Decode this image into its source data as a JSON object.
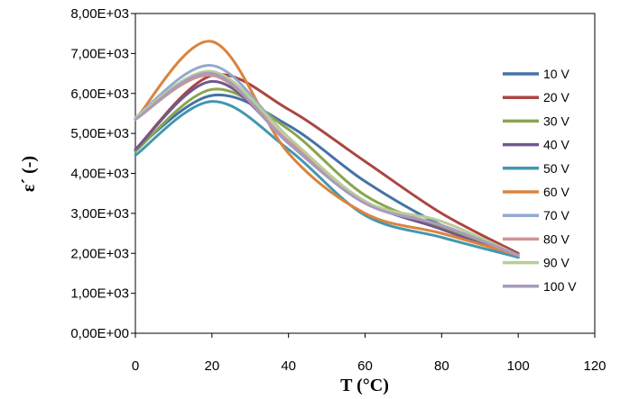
{
  "chart_data": {
    "type": "line",
    "title": "",
    "xlabel": "T (°C)",
    "ylabel": "ε´ (-)",
    "xlim": [
      0,
      120
    ],
    "ylim": [
      0,
      8000
    ],
    "x_ticks": [
      "0",
      "20",
      "40",
      "60",
      "80",
      "100",
      "120"
    ],
    "y_ticks": [
      "0,00E+00",
      "1,00E+03",
      "2,00E+03",
      "3,00E+03",
      "4,00E+03",
      "5,00E+03",
      "6,00E+03",
      "7,00E+03",
      "8,00E+03"
    ],
    "grid": false,
    "legend_position": "right",
    "series": [
      {
        "name": "10 V",
        "color": "#4572a7",
        "x": [
          0,
          20,
          40,
          60,
          80,
          100
        ],
        "y": [
          4600,
          5950,
          5200,
          3800,
          2700,
          1950
        ]
      },
      {
        "name": "20 V",
        "color": "#aa4643",
        "x": [
          0,
          20,
          40,
          60,
          80,
          100
        ],
        "y": [
          4600,
          6450,
          5600,
          4300,
          3000,
          2000
        ]
      },
      {
        "name": "30 V",
        "color": "#89a54e",
        "x": [
          0,
          20,
          40,
          60,
          80,
          100
        ],
        "y": [
          4550,
          6100,
          5100,
          3450,
          2650,
          1950
        ]
      },
      {
        "name": "40 V",
        "color": "#71588f",
        "x": [
          0,
          20,
          40,
          60,
          80,
          100
        ],
        "y": [
          4600,
          6300,
          4800,
          3300,
          2600,
          1900
        ]
      },
      {
        "name": "50 V",
        "color": "#4198af",
        "x": [
          0,
          20,
          40,
          60,
          80,
          100
        ],
        "y": [
          4450,
          5800,
          4600,
          2950,
          2400,
          1900
        ]
      },
      {
        "name": "60 V",
        "color": "#db843d",
        "x": [
          0,
          20,
          40,
          60,
          80,
          100
        ],
        "y": [
          5350,
          7300,
          4500,
          3000,
          2500,
          1950
        ]
      },
      {
        "name": "70 V",
        "color": "#93a9cf",
        "x": [
          0,
          20,
          40,
          60,
          80,
          100
        ],
        "y": [
          5400,
          6700,
          4900,
          3300,
          2700,
          1950
        ]
      },
      {
        "name": "80 V",
        "color": "#d19392",
        "x": [
          0,
          20,
          40,
          60,
          80,
          100
        ],
        "y": [
          5350,
          6450,
          4800,
          3300,
          2700,
          1950
        ]
      },
      {
        "name": "90 V",
        "color": "#b9cd96",
        "x": [
          0,
          20,
          40,
          60,
          80,
          100
        ],
        "y": [
          5400,
          6550,
          4900,
          3300,
          2800,
          1950
        ]
      },
      {
        "name": "100 V",
        "color": "#a99bbd",
        "x": [
          0,
          20,
          40,
          60,
          80,
          100
        ],
        "y": [
          5350,
          6500,
          4750,
          3250,
          2700,
          1950
        ]
      }
    ]
  }
}
